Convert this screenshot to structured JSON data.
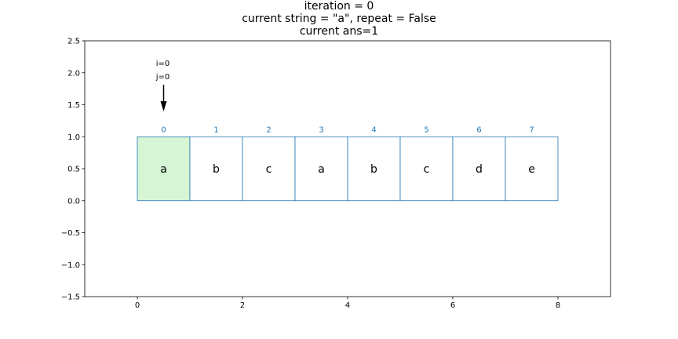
{
  "title_lines": [
    "iteration = 0",
    "current string = \"a\", repeat = False",
    "current ans=1"
  ],
  "chart_data": {
    "type": "diagram",
    "xlim": [
      -1,
      9
    ],
    "ylim": [
      -1.5,
      2.5
    ],
    "x_ticks": [
      "0",
      "2",
      "4",
      "6",
      "8"
    ],
    "y_ticks": [
      "2.5",
      "2.0",
      "1.5",
      "1.0",
      "0.5",
      "0.0",
      "−0.5",
      "−1.0",
      "−1.5"
    ],
    "cells": [
      {
        "index": "0",
        "char": "a",
        "highlight": true
      },
      {
        "index": "1",
        "char": "b",
        "highlight": false
      },
      {
        "index": "2",
        "char": "c",
        "highlight": false
      },
      {
        "index": "3",
        "char": "a",
        "highlight": false
      },
      {
        "index": "4",
        "char": "b",
        "highlight": false
      },
      {
        "index": "5",
        "char": "c",
        "highlight": false
      },
      {
        "index": "6",
        "char": "d",
        "highlight": false
      },
      {
        "index": "7",
        "char": "e",
        "highlight": false
      }
    ],
    "pointer": {
      "labels": [
        "i=0",
        "j=0"
      ],
      "cell": 0
    },
    "colors": {
      "highlight": "#d5f5d5",
      "cell_border": "#1f77b4",
      "index_text": "#1f77b4"
    }
  }
}
